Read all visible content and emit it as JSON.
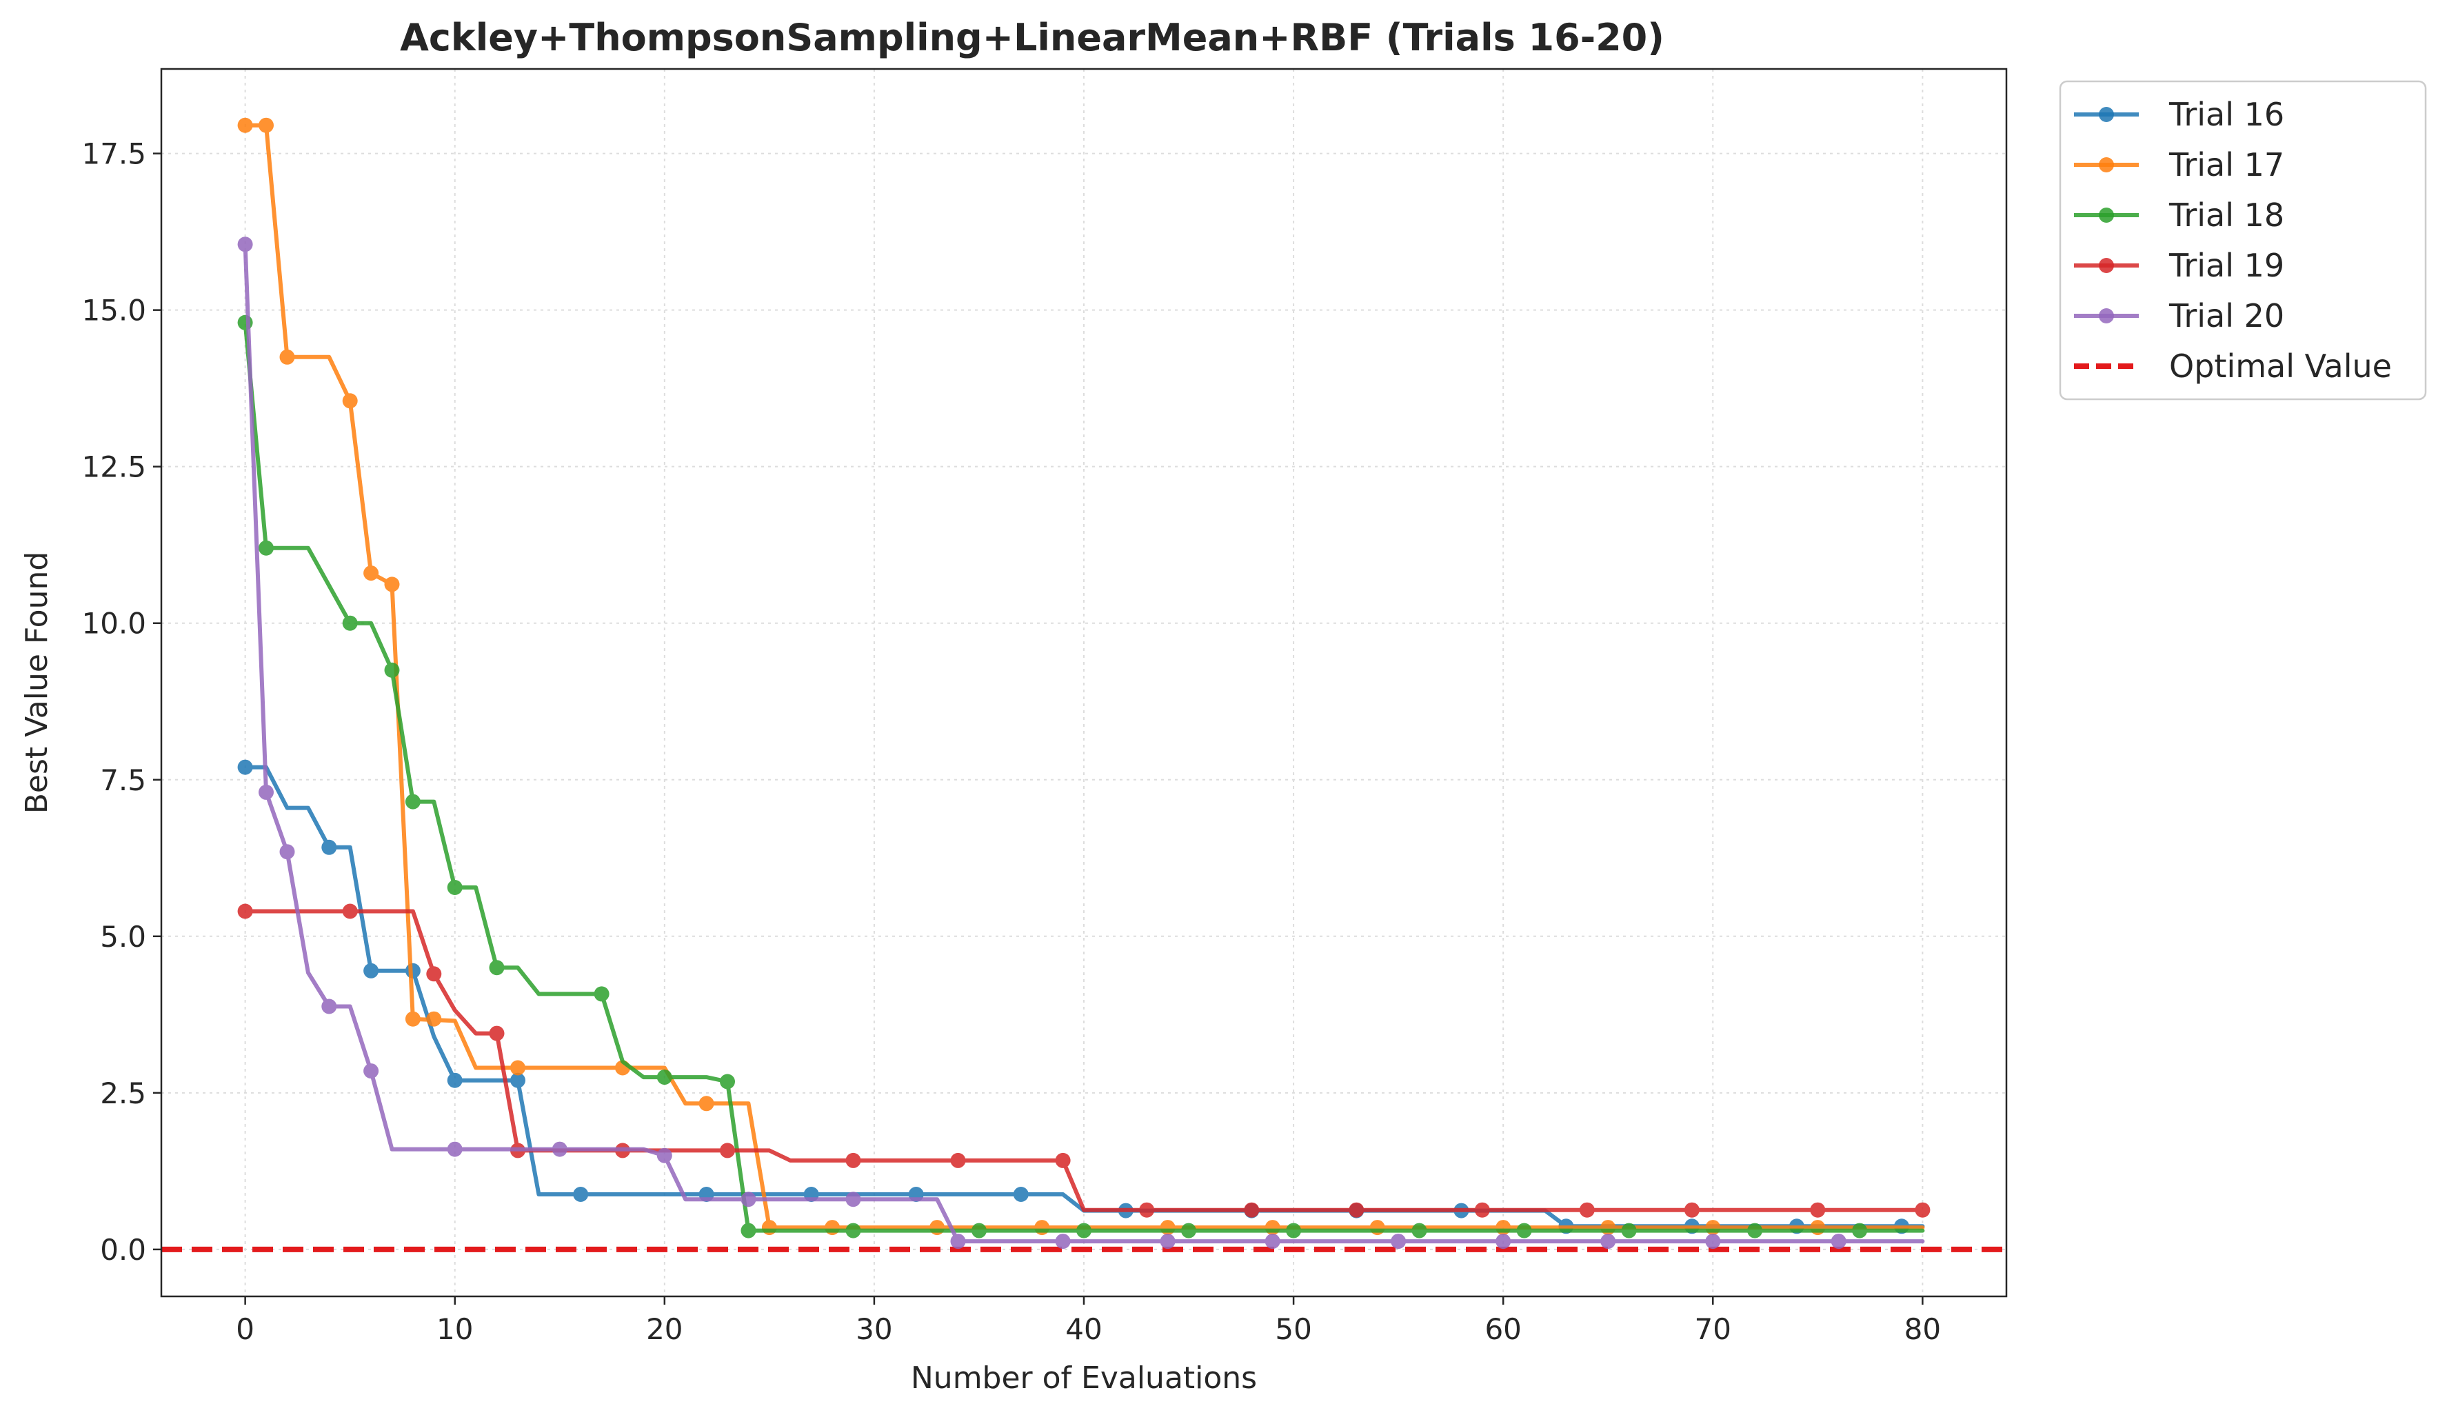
{
  "chart_data": {
    "type": "line",
    "title": "Ackley+ThompsonSampling+LinearMean+RBF (Trials 16-20)",
    "xlabel": "Number of Evaluations",
    "ylabel": "Best Value Found",
    "xlim": [
      -4,
      84
    ],
    "ylim": [
      -0.75,
      18.85
    ],
    "xticks": [
      0,
      10,
      20,
      30,
      40,
      50,
      60,
      70,
      80
    ],
    "yticks": [
      0.0,
      2.5,
      5.0,
      7.5,
      10.0,
      12.5,
      15.0,
      17.5
    ],
    "grid": true,
    "legend_position": "outside-top-right",
    "series": [
      {
        "name": "Trial 16",
        "color": "#1f77b4",
        "steps": [
          [
            0,
            7.7
          ],
          [
            1,
            7.7
          ],
          [
            2,
            7.05
          ],
          [
            3,
            7.05
          ],
          [
            4,
            6.42
          ],
          [
            5,
            6.42
          ],
          [
            6,
            4.45
          ],
          [
            8,
            4.45
          ],
          [
            9,
            3.4
          ],
          [
            10,
            2.7
          ],
          [
            13,
            2.7
          ],
          [
            14,
            0.88
          ],
          [
            39,
            0.88
          ],
          [
            40,
            0.62
          ],
          [
            62,
            0.62
          ],
          [
            63,
            0.37
          ],
          [
            80,
            0.37
          ]
        ],
        "markers": [
          [
            0,
            7.7
          ],
          [
            4,
            6.42
          ],
          [
            6,
            4.45
          ],
          [
            8,
            4.45
          ],
          [
            10,
            2.7
          ],
          [
            13,
            2.7
          ],
          [
            16,
            0.88
          ],
          [
            22,
            0.88
          ],
          [
            27,
            0.88
          ],
          [
            32,
            0.88
          ],
          [
            37,
            0.88
          ],
          [
            42,
            0.62
          ],
          [
            48,
            0.62
          ],
          [
            53,
            0.62
          ],
          [
            58,
            0.62
          ],
          [
            63,
            0.37
          ],
          [
            69,
            0.37
          ],
          [
            74,
            0.37
          ],
          [
            79,
            0.37
          ]
        ]
      },
      {
        "name": "Trial 17",
        "color": "#ff7f0e",
        "steps": [
          [
            0,
            17.95
          ],
          [
            1,
            17.95
          ],
          [
            2,
            14.25
          ],
          [
            4,
            14.25
          ],
          [
            5,
            13.55
          ],
          [
            6,
            10.8
          ],
          [
            7,
            10.62
          ],
          [
            8,
            3.68
          ],
          [
            10,
            3.65
          ],
          [
            11,
            2.9
          ],
          [
            20,
            2.9
          ],
          [
            21,
            2.33
          ],
          [
            24,
            2.33
          ],
          [
            25,
            0.35
          ],
          [
            80,
            0.35
          ]
        ],
        "markers": [
          [
            0,
            17.95
          ],
          [
            1,
            17.95
          ],
          [
            2,
            14.25
          ],
          [
            5,
            13.55
          ],
          [
            6,
            10.8
          ],
          [
            7,
            10.62
          ],
          [
            8,
            3.68
          ],
          [
            9,
            3.68
          ],
          [
            13,
            2.9
          ],
          [
            18,
            2.9
          ],
          [
            22,
            2.33
          ],
          [
            25,
            0.35
          ],
          [
            28,
            0.35
          ],
          [
            33,
            0.35
          ],
          [
            38,
            0.35
          ],
          [
            44,
            0.35
          ],
          [
            49,
            0.35
          ],
          [
            54,
            0.35
          ],
          [
            60,
            0.35
          ],
          [
            65,
            0.35
          ],
          [
            70,
            0.35
          ],
          [
            75,
            0.35
          ]
        ]
      },
      {
        "name": "Trial 18",
        "color": "#2ca02c",
        "steps": [
          [
            0,
            14.8
          ],
          [
            1,
            11.2
          ],
          [
            3,
            11.2
          ],
          [
            5,
            10.0
          ],
          [
            6,
            10.0
          ],
          [
            7,
            9.25
          ],
          [
            8,
            7.15
          ],
          [
            9,
            7.15
          ],
          [
            10,
            5.78
          ],
          [
            11,
            5.78
          ],
          [
            12,
            4.5
          ],
          [
            13,
            4.5
          ],
          [
            14,
            4.08
          ],
          [
            17,
            4.08
          ],
          [
            18,
            3.0
          ],
          [
            19,
            2.75
          ],
          [
            22,
            2.75
          ],
          [
            23,
            2.68
          ],
          [
            24,
            0.3
          ],
          [
            80,
            0.3
          ]
        ],
        "markers": [
          [
            0,
            14.8
          ],
          [
            1,
            11.2
          ],
          [
            5,
            10.0
          ],
          [
            7,
            9.25
          ],
          [
            8,
            7.15
          ],
          [
            10,
            5.78
          ],
          [
            12,
            4.5
          ],
          [
            17,
            4.08
          ],
          [
            20,
            2.75
          ],
          [
            23,
            2.68
          ],
          [
            24,
            0.3
          ],
          [
            29,
            0.3
          ],
          [
            35,
            0.3
          ],
          [
            40,
            0.3
          ],
          [
            45,
            0.3
          ],
          [
            50,
            0.3
          ],
          [
            56,
            0.3
          ],
          [
            61,
            0.3
          ],
          [
            66,
            0.3
          ],
          [
            72,
            0.3
          ],
          [
            77,
            0.3
          ]
        ]
      },
      {
        "name": "Trial 19",
        "color": "#d62728",
        "steps": [
          [
            0,
            5.4
          ],
          [
            8,
            5.4
          ],
          [
            9,
            4.4
          ],
          [
            10,
            3.82
          ],
          [
            11,
            3.45
          ],
          [
            12,
            3.45
          ],
          [
            13,
            1.58
          ],
          [
            25,
            1.58
          ],
          [
            26,
            1.42
          ],
          [
            39,
            1.42
          ],
          [
            40,
            0.63
          ],
          [
            80,
            0.63
          ]
        ],
        "markers": [
          [
            0,
            5.4
          ],
          [
            5,
            5.4
          ],
          [
            9,
            4.4
          ],
          [
            12,
            3.45
          ],
          [
            13,
            1.58
          ],
          [
            18,
            1.58
          ],
          [
            23,
            1.58
          ],
          [
            29,
            1.42
          ],
          [
            34,
            1.42
          ],
          [
            39,
            1.42
          ],
          [
            43,
            0.63
          ],
          [
            48,
            0.63
          ],
          [
            53,
            0.63
          ],
          [
            59,
            0.63
          ],
          [
            64,
            0.63
          ],
          [
            69,
            0.63
          ],
          [
            75,
            0.63
          ],
          [
            80,
            0.63
          ]
        ]
      },
      {
        "name": "Trial 20",
        "color": "#9467bd",
        "steps": [
          [
            0,
            16.05
          ],
          [
            1,
            7.3
          ],
          [
            2,
            6.35
          ],
          [
            3,
            4.42
          ],
          [
            4,
            3.88
          ],
          [
            5,
            3.88
          ],
          [
            6,
            2.85
          ],
          [
            7,
            1.6
          ],
          [
            19,
            1.6
          ],
          [
            20,
            1.5
          ],
          [
            21,
            0.8
          ],
          [
            33,
            0.8
          ],
          [
            34,
            0.13
          ],
          [
            80,
            0.13
          ]
        ],
        "markers": [
          [
            0,
            16.05
          ],
          [
            1,
            7.3
          ],
          [
            2,
            6.35
          ],
          [
            4,
            3.88
          ],
          [
            6,
            2.85
          ],
          [
            10,
            1.6
          ],
          [
            15,
            1.6
          ],
          [
            20,
            1.5
          ],
          [
            24,
            0.8
          ],
          [
            29,
            0.8
          ],
          [
            34,
            0.13
          ],
          [
            39,
            0.13
          ],
          [
            44,
            0.13
          ],
          [
            49,
            0.13
          ],
          [
            55,
            0.13
          ],
          [
            60,
            0.13
          ],
          [
            65,
            0.13
          ],
          [
            70,
            0.13
          ],
          [
            76,
            0.13
          ]
        ]
      }
    ],
    "reference_line": {
      "name": "Optimal Value",
      "y": 0.0,
      "color": "#e31a1c",
      "style": "dashed"
    }
  }
}
